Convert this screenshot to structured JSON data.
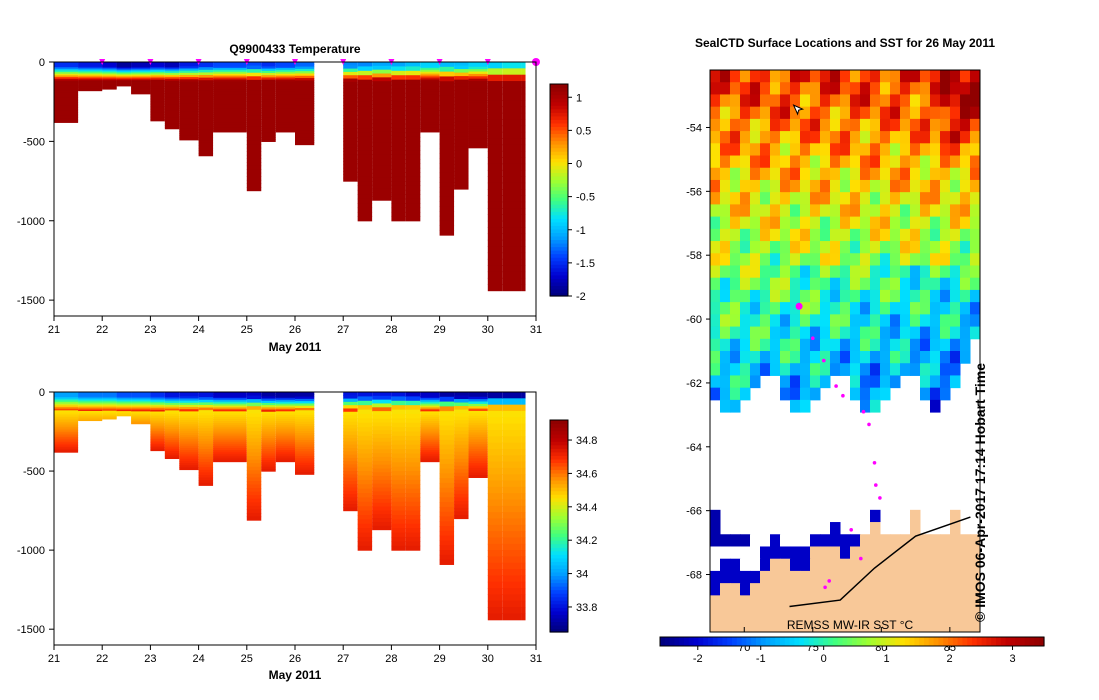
{
  "colors": {
    "jet": [
      "#00007f",
      "#0000d0",
      "#0040ff",
      "#00a0ff",
      "#00e0ff",
      "#40ff80",
      "#a0ff30",
      "#ffe000",
      "#ff9000",
      "#ff3000",
      "#c00000",
      "#900000"
    ],
    "profile_fill": "#9b0000",
    "land": "#f8c898",
    "ice_land": "#ffffff",
    "track": "#ff00ff"
  },
  "chart_data": [
    {
      "type": "heatmap",
      "id": "temperature",
      "title": "Q9900433  Temperature",
      "xlabel": "May 2011",
      "ylabel": "",
      "x_ticks": [
        "21",
        "22",
        "23",
        "24",
        "25",
        "26",
        "27",
        "28",
        "29",
        "30",
        "31"
      ],
      "y_ticks": [
        "0",
        "-500",
        "-1000",
        "-1500"
      ],
      "xlim": [
        21,
        31
      ],
      "ylim": [
        -1600,
        0
      ],
      "colorbar": {
        "range": [
          -2,
          1.2
        ],
        "ticks": [
          "1",
          "0.5",
          "0",
          "-0.5",
          "-1",
          "-1.5",
          "-2"
        ],
        "tick_values": [
          1,
          0.5,
          0,
          -0.5,
          -1,
          -1.5,
          -2
        ]
      },
      "profile_days": [
        21.0,
        21.5,
        22.0,
        22.3,
        22.6,
        23.0,
        23.3,
        23.6,
        24.0,
        24.3,
        25.0,
        25.3,
        25.6,
        26.0,
        26.4,
        27.0,
        27.3,
        27.6,
        28.0,
        28.3,
        28.6,
        29.0,
        29.3,
        29.6,
        30.0,
        30.3,
        30.7
      ],
      "profile_depths": [
        380,
        180,
        170,
        150,
        200,
        370,
        420,
        490,
        590,
        440,
        810,
        500,
        440,
        520,
        0,
        750,
        1000,
        870,
        1000,
        1000,
        440,
        1090,
        800,
        540,
        1440,
        1440,
        1440
      ],
      "surface_values": [
        -1.5,
        -1.6,
        -1.7,
        -1.9,
        -1.8,
        -1.7,
        -1.8,
        -1.6,
        -1.5,
        -1.4,
        -1.4,
        -1.5,
        -1.4,
        -1.3,
        -1.3,
        -1.2,
        -1.2,
        -1.1,
        -1.1,
        -1.0,
        -0.9,
        -1.0,
        -1.0,
        -0.9,
        -0.9,
        -0.8,
        -0.8
      ],
      "deep_value": 1.2,
      "marker_days": [
        22,
        23,
        24,
        25,
        26,
        27,
        28,
        29,
        30,
        31
      ]
    },
    {
      "type": "heatmap",
      "id": "salinity",
      "title": "",
      "xlabel": "May 2011",
      "ylabel": "",
      "x_ticks": [
        "21",
        "22",
        "23",
        "24",
        "25",
        "26",
        "27",
        "28",
        "29",
        "30",
        "31"
      ],
      "y_ticks": [
        "0",
        "-500",
        "-1000",
        "-1500"
      ],
      "xlim": [
        21,
        31
      ],
      "ylim": [
        -1600,
        0
      ],
      "colorbar": {
        "range": [
          33.65,
          34.92
        ],
        "ticks": [
          "34.8",
          "34.6",
          "34.4",
          "34.2",
          "34",
          "33.8"
        ],
        "tick_values": [
          34.8,
          34.6,
          34.4,
          34.2,
          34.0,
          33.8
        ]
      },
      "profile_days": [
        21.0,
        21.5,
        22.0,
        22.3,
        22.6,
        23.0,
        23.3,
        23.6,
        24.0,
        24.3,
        25.0,
        25.3,
        25.6,
        26.0,
        26.4,
        27.0,
        27.3,
        27.6,
        28.0,
        28.3,
        28.6,
        29.0,
        29.3,
        29.6,
        30.0,
        30.3,
        30.7
      ],
      "profile_depths": [
        380,
        180,
        170,
        150,
        200,
        370,
        420,
        490,
        590,
        440,
        810,
        500,
        440,
        520,
        0,
        750,
        1000,
        870,
        1000,
        1000,
        440,
        1090,
        800,
        540,
        1440,
        1440,
        1440
      ],
      "surface_values": [
        34.0,
        33.95,
        33.95,
        33.9,
        33.9,
        33.85,
        33.8,
        33.8,
        33.8,
        33.75,
        33.75,
        33.7,
        33.7,
        33.7,
        33.7,
        33.8,
        33.8,
        33.8,
        33.8,
        33.75,
        33.75,
        33.7,
        33.7,
        33.7,
        33.7,
        33.7,
        33.7
      ],
      "deep_value": 34.74
    },
    {
      "type": "heatmap",
      "id": "sst_map",
      "title": "SealCTD Surface Locations and SST for 26 May 2011",
      "xlabel": "",
      "ylabel": "",
      "lat_ticks": [
        "-54",
        "-56",
        "-58",
        "-60",
        "-62",
        "-64",
        "-66",
        "-68"
      ],
      "lat_values": [
        -54,
        -56,
        -58,
        -60,
        -62,
        -64,
        -66,
        -68
      ],
      "lat_range": [
        -52.2,
        -69.8
      ],
      "lon_ticks": [
        "70",
        "75",
        "80",
        "85"
      ],
      "lon_values": [
        70,
        75,
        80,
        85
      ],
      "lon_range": [
        67.5,
        87.2
      ],
      "colorbar": {
        "range": [
          -2.6,
          3.5
        ],
        "ticks": [
          "-2",
          "-1",
          "0",
          "1",
          "2",
          "3"
        ],
        "tick_values": [
          -2,
          -1,
          0,
          1,
          2,
          3
        ]
      },
      "track": [
        {
          "lon": 74.0,
          "lat": -59.6,
          "current": true
        },
        {
          "lon": 75.0,
          "lat": -60.6
        },
        {
          "lon": 75.8,
          "lat": -61.3
        },
        {
          "lon": 76.7,
          "lat": -62.1
        },
        {
          "lon": 77.2,
          "lat": -62.4
        },
        {
          "lon": 78.7,
          "lat": -62.9
        },
        {
          "lon": 79.1,
          "lat": -63.3
        },
        {
          "lon": 79.5,
          "lat": -64.5
        },
        {
          "lon": 79.6,
          "lat": -65.2
        },
        {
          "lon": 79.9,
          "lat": -65.6
        },
        {
          "lon": 77.8,
          "lat": -66.6
        },
        {
          "lon": 78.5,
          "lat": -67.5
        },
        {
          "lon": 76.2,
          "lat": -68.2
        },
        {
          "lon": 75.9,
          "lat": -68.4
        }
      ],
      "cursor": {
        "lon": 73.6,
        "lat": -53.3
      },
      "source_label": "REMSS MW-IR SST °C",
      "credit": "© IMOS 06-Apr-2017 17:14 Hobart Time"
    }
  ]
}
